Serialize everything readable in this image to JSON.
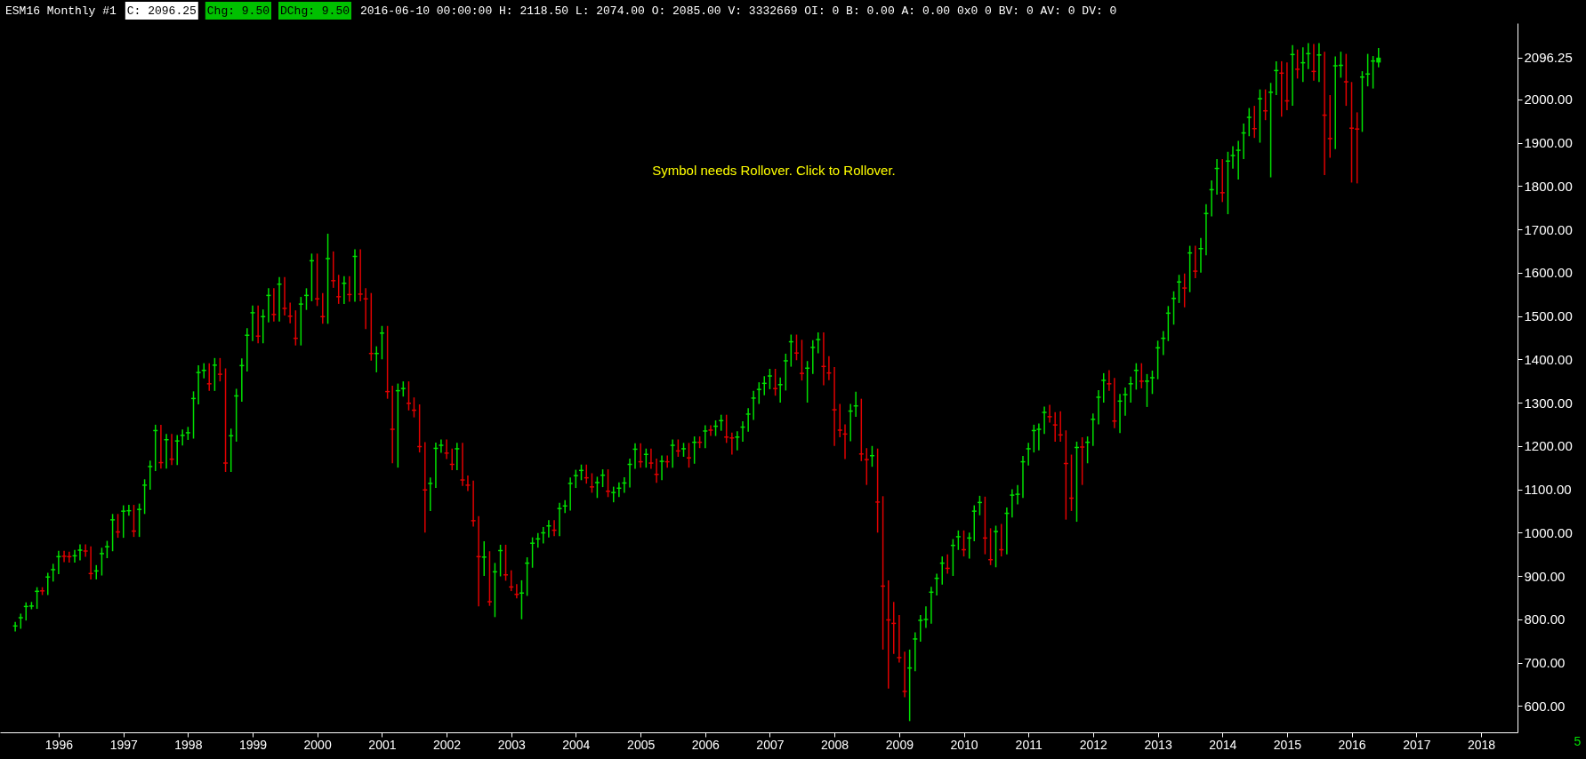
{
  "chart_data": {
    "type": "candlestick",
    "title": "ESM16 Monthly #1",
    "annotations": [
      "C: 2096.25",
      "Chg: 9.50",
      "DChg: 9.50",
      "2016-06-10 00:00:00 H: 2118.50 L: 2074.00 O: 2085.00 V: 3332669 OI: 0 B: 0.00 A: 0.00 0x0 0 BV: 0 AV: 0 DV: 0",
      "Symbol needs Rollover. Click to Rollover.",
      "5"
    ],
    "colors": [
      "#00e000",
      "#00e000",
      "#00e000",
      "#00e000",
      "#00e000",
      "#e00000",
      "#00e000",
      "#00e000",
      "#00e000",
      "#e00000",
      "#e00000",
      "#00e000",
      "#00e000",
      "#e00000",
      "#e00000",
      "#00e000",
      "#00e000",
      "#00e000",
      "#00e000",
      "#e00000",
      "#00e000",
      "#00e000",
      "#e00000",
      "#00e000",
      "#00e000",
      "#00e000",
      "#00e000",
      "#e00000",
      "#00e000",
      "#e00000",
      "#00e000",
      "#00e000",
      "#00e000",
      "#00e000",
      "#00e000",
      "#00e000",
      "#e00000",
      "#00e000",
      "#e00000",
      "#e00000",
      "#00e000",
      "#00e000",
      "#00e000",
      "#00e000",
      "#00e000",
      "#e00000",
      "#00e000",
      "#00e000",
      "#e00000",
      "#00e000",
      "#e00000",
      "#e00000",
      "#e00000",
      "#00e000",
      "#00e000",
      "#00e000",
      "#e00000",
      "#e00000",
      "#00e000",
      "#e00000",
      "#e00000",
      "#00e000",
      "#e00000",
      "#00e000",
      "#e00000",
      "#e00000",
      "#e00000",
      "#00e000",
      "#00e000",
      "#e00000",
      "#e00000",
      "#00e000",
      "#00e000",
      "#e00000",
      "#e00000",
      "#e00000",
      "#e00000",
      "#00e000",
      "#00e000",
      "#00e000",
      "#e00000",
      "#e00000",
      "#00e000",
      "#e00000",
      "#e00000",
      "#e00000",
      "#e00000",
      "#00e000",
      "#e00000",
      "#00e000",
      "#00e000",
      "#e00000",
      "#e00000",
      "#e00000",
      "#00e000",
      "#00e000",
      "#00e000",
      "#00e000",
      "#00e000",
      "#00e000",
      "#e00000",
      "#00e000",
      "#00e000",
      "#00e000",
      "#00e000",
      "#00e000",
      "#e00000",
      "#e00000",
      "#00e000",
      "#00e000",
      "#e00000",
      "#00e000",
      "#00e000",
      "#00e000",
      "#00e000",
      "#00e000",
      "#e00000",
      "#00e000",
      "#e00000",
      "#e00000",
      "#00e000",
      "#e00000",
      "#00e000",
      "#e00000",
      "#00e000",
      "#e00000",
      "#00e000",
      "#e00000",
      "#00e000",
      "#e00000",
      "#00e000",
      "#00e000",
      "#e00000",
      "#e00000",
      "#00e000",
      "#00e000",
      "#00e000",
      "#00e000",
      "#00e000",
      "#00e000",
      "#00e000",
      "#e00000",
      "#00e000",
      "#00e000",
      "#00e000",
      "#e00000",
      "#e00000",
      "#00e000",
      "#00e000",
      "#00e000",
      "#e00000",
      "#e00000",
      "#e00000",
      "#e00000",
      "#e00000",
      "#00e000",
      "#00e000",
      "#e00000",
      "#e00000",
      "#00e000",
      "#e00000",
      "#e00000",
      "#e00000",
      "#e00000",
      "#e00000",
      "#e00000",
      "#00e000",
      "#00e000",
      "#00e000",
      "#00e000",
      "#00e000",
      "#00e000",
      "#00e000",
      "#e00000",
      "#00e000",
      "#00e000",
      "#e00000",
      "#00e000",
      "#00e000",
      "#00e000",
      "#e00000",
      "#e00000",
      "#00e000",
      "#e00000",
      "#00e000",
      "#00e000",
      "#00e000",
      "#00e000",
      "#00e000",
      "#00e000",
      "#00e000",
      "#00e000",
      "#e00000",
      "#e00000",
      "#e00000",
      "#e00000",
      "#e00000",
      "#00e000",
      "#e00000",
      "#00e000",
      "#00e000",
      "#00e000",
      "#00e000",
      "#e00000",
      "#e00000",
      "#00e000",
      "#00e000",
      "#00e000",
      "#00e000",
      "#e00000",
      "#00e000",
      "#00e000",
      "#00e000",
      "#00e000",
      "#00e000",
      "#00e000",
      "#00e000",
      "#e00000",
      "#00e000",
      "#e00000",
      "#00e000",
      "#00e000",
      "#00e000",
      "#00e000",
      "#e00000",
      "#00e000",
      "#00e000",
      "#00e000",
      "#00e000",
      "#00e000",
      "#e00000",
      "#00e000",
      "#e00000",
      "#00e000",
      "#00e000",
      "#e00000",
      "#e00000",
      "#00e000",
      "#e00000",
      "#00e000",
      "#00e000",
      "#e00000",
      "#00e000",
      "#e00000",
      "#e00000",
      "#00e000",
      "#00e000",
      "#e00000",
      "#e00000",
      "#e00000",
      "#00e000",
      "#00e000",
      "#00e000",
      "#00e000"
    ],
    "xlim": [
      "1995-03",
      "2018-07"
    ],
    "xticks": [
      "1996",
      "1997",
      "1998",
      "1999",
      "2000",
      "2001",
      "2002",
      "2003",
      "2004",
      "2005",
      "2006",
      "2007",
      "2008",
      "2009",
      "2010",
      "2011",
      "2012",
      "2013",
      "2014",
      "2015",
      "2016",
      "2017",
      "2018"
    ],
    "ylim": [
      539,
      2176
    ],
    "yticks": [
      {
        "value": 600,
        "label": "600.00"
      },
      {
        "value": 700,
        "label": "700.00"
      },
      {
        "value": 800,
        "label": "800.00"
      },
      {
        "value": 900,
        "label": "900.00"
      },
      {
        "value": 1000,
        "label": "1000.00"
      },
      {
        "value": 1100,
        "label": "1100.00"
      },
      {
        "value": 1200,
        "label": "1200.00"
      },
      {
        "value": 1300,
        "label": "1300.00"
      },
      {
        "value": 1400,
        "label": "1400.00"
      },
      {
        "value": 1500,
        "label": "1500.00"
      },
      {
        "value": 1600,
        "label": "1600.00"
      },
      {
        "value": 1700,
        "label": "1700.00"
      },
      {
        "value": 1800,
        "label": "1800.00"
      },
      {
        "value": 1900,
        "label": "1900.00"
      },
      {
        "value": 2000,
        "label": "2000.00"
      },
      {
        "value": 2096.25,
        "label": "2096.25"
      }
    ],
    "grid": false,
    "x": [
      "1995-05",
      "1995-06",
      "1995-07",
      "1995-08",
      "1995-09",
      "1995-10",
      "1995-11",
      "1995-12",
      "1996-01",
      "1996-02",
      "1996-03",
      "1996-04",
      "1996-05",
      "1996-06",
      "1996-07",
      "1996-08",
      "1996-09",
      "1996-10",
      "1996-11",
      "1996-12",
      "1997-01",
      "1997-02",
      "1997-03",
      "1997-04",
      "1997-05",
      "1997-06",
      "1997-07",
      "1997-08",
      "1997-09",
      "1997-10",
      "1997-11",
      "1997-12",
      "1998-01",
      "1998-02",
      "1998-03",
      "1998-04",
      "1998-05",
      "1998-06",
      "1998-07",
      "1998-08",
      "1998-09",
      "1998-10",
      "1998-11",
      "1998-12",
      "1999-01",
      "1999-02",
      "1999-03",
      "1999-04",
      "1999-05",
      "1999-06",
      "1999-07",
      "1999-08",
      "1999-09",
      "1999-10",
      "1999-11",
      "1999-12",
      "2000-01",
      "2000-02",
      "2000-03",
      "2000-04",
      "2000-05",
      "2000-06",
      "2000-07",
      "2000-08",
      "2000-09",
      "2000-10",
      "2000-11",
      "2000-12",
      "2001-01",
      "2001-02",
      "2001-03",
      "2001-04",
      "2001-05",
      "2001-06",
      "2001-07",
      "2001-08",
      "2001-09",
      "2001-10",
      "2001-11",
      "2001-12",
      "2002-01",
      "2002-02",
      "2002-03",
      "2002-04",
      "2002-05",
      "2002-06",
      "2002-07",
      "2002-08",
      "2002-09",
      "2002-10",
      "2002-11",
      "2002-12",
      "2003-01",
      "2003-02",
      "2003-03",
      "2003-04",
      "2003-05",
      "2003-06",
      "2003-07",
      "2003-08",
      "2003-09",
      "2003-10",
      "2003-11",
      "2003-12",
      "2004-01",
      "2004-02",
      "2004-03",
      "2004-04",
      "2004-05",
      "2004-06",
      "2004-07",
      "2004-08",
      "2004-09",
      "2004-10",
      "2004-11",
      "2004-12",
      "2005-01",
      "2005-02",
      "2005-03",
      "2005-04",
      "2005-05",
      "2005-06",
      "2005-07",
      "2005-08",
      "2005-09",
      "2005-10",
      "2005-11",
      "2005-12",
      "2006-01",
      "2006-02",
      "2006-03",
      "2006-04",
      "2006-05",
      "2006-06",
      "2006-07",
      "2006-08",
      "2006-09",
      "2006-10",
      "2006-11",
      "2006-12",
      "2007-01",
      "2007-02",
      "2007-03",
      "2007-04",
      "2007-05",
      "2007-06",
      "2007-07",
      "2007-08",
      "2007-09",
      "2007-10",
      "2007-11",
      "2007-12",
      "2008-01",
      "2008-02",
      "2008-03",
      "2008-04",
      "2008-05",
      "2008-06",
      "2008-07",
      "2008-08",
      "2008-09",
      "2008-10",
      "2008-11",
      "2008-12",
      "2009-01",
      "2009-02",
      "2009-03",
      "2009-04",
      "2009-05",
      "2009-06",
      "2009-07",
      "2009-08",
      "2009-09",
      "2009-10",
      "2009-11",
      "2009-12",
      "2010-01",
      "2010-02",
      "2010-03",
      "2010-04",
      "2010-05",
      "2010-06",
      "2010-07",
      "2010-08",
      "2010-09",
      "2010-10",
      "2010-11",
      "2010-12",
      "2011-01",
      "2011-02",
      "2011-03",
      "2011-04",
      "2011-05",
      "2011-06",
      "2011-07",
      "2011-08",
      "2011-09",
      "2011-10",
      "2011-11",
      "2011-12",
      "2012-01",
      "2012-02",
      "2012-03",
      "2012-04",
      "2012-05",
      "2012-06",
      "2012-07",
      "2012-08",
      "2012-09",
      "2012-10",
      "2012-11",
      "2012-12",
      "2013-01",
      "2013-02",
      "2013-03",
      "2013-04",
      "2013-05",
      "2013-06",
      "2013-07",
      "2013-08",
      "2013-09",
      "2013-10",
      "2013-11",
      "2013-12",
      "2014-01",
      "2014-02",
      "2014-03",
      "2014-04",
      "2014-05",
      "2014-06",
      "2014-07",
      "2014-08",
      "2014-09",
      "2014-10",
      "2014-11",
      "2014-12",
      "2015-01",
      "2015-02",
      "2015-03",
      "2015-04",
      "2015-05",
      "2015-06",
      "2015-07",
      "2015-08",
      "2015-09",
      "2015-10",
      "2015-11",
      "2015-12",
      "2016-01",
      "2016-02",
      "2016-03",
      "2016-04",
      "2016-05",
      "2016-06"
    ],
    "ohlc": [
      [
        783,
        794,
        772,
        786
      ],
      [
        802,
        813,
        778,
        805
      ],
      [
        828,
        839,
        797,
        831
      ],
      [
        829,
        840,
        823,
        832
      ],
      [
        863,
        874,
        824,
        866
      ],
      [
        867,
        874,
        856,
        864
      ],
      [
        896,
        907,
        856,
        899
      ],
      [
        913,
        928,
        887,
        916
      ],
      [
        943,
        958,
        904,
        946
      ],
      [
        947,
        958,
        932,
        944
      ],
      [
        946,
        956,
        931,
        943
      ],
      [
        945,
        960,
        931,
        948
      ],
      [
        958,
        973,
        936,
        961
      ],
      [
        959,
        973,
        944,
        956
      ],
      [
        907,
        968,
        892,
        904
      ],
      [
        910,
        925,
        892,
        913
      ],
      [
        950,
        965,
        901,
        953
      ],
      [
        966,
        981,
        941,
        969
      ],
      [
        1028,
        1043,
        957,
        1031
      ],
      [
        1003,
        1043,
        988,
        1000
      ],
      [
        1048,
        1063,
        988,
        1051
      ],
      [
        1049,
        1064,
        1039,
        1052
      ],
      [
        1005,
        1064,
        990,
        1002
      ],
      [
        1052,
        1067,
        990,
        1055
      ],
      [
        1108,
        1123,
        1043,
        1111
      ],
      [
        1151,
        1166,
        1099,
        1154
      ],
      [
        1234,
        1249,
        1142,
        1237
      ],
      [
        1163,
        1249,
        1148,
        1160
      ],
      [
        1213,
        1228,
        1148,
        1216
      ],
      [
        1171,
        1228,
        1156,
        1168
      ],
      [
        1210,
        1225,
        1156,
        1213
      ],
      [
        1223,
        1238,
        1201,
        1226
      ],
      [
        1229,
        1244,
        1214,
        1232
      ],
      [
        1308,
        1326,
        1217,
        1311
      ],
      [
        1368,
        1386,
        1296,
        1371
      ],
      [
        1373,
        1391,
        1356,
        1376
      ],
      [
        1345,
        1391,
        1327,
        1342
      ],
      [
        1385,
        1403,
        1327,
        1388
      ],
      [
        1367,
        1403,
        1349,
        1364
      ],
      [
        1162,
        1379,
        1140,
        1159
      ],
      [
        1222,
        1240,
        1140,
        1225
      ],
      [
        1314,
        1332,
        1210,
        1317
      ],
      [
        1384,
        1402,
        1302,
        1387
      ],
      [
        1454,
        1472,
        1372,
        1457
      ],
      [
        1506,
        1524,
        1442,
        1509
      ],
      [
        1455,
        1524,
        1437,
        1452
      ],
      [
        1497,
        1515,
        1437,
        1500
      ],
      [
        1546,
        1564,
        1485,
        1549
      ],
      [
        1505,
        1564,
        1487,
        1502
      ],
      [
        1572,
        1590,
        1487,
        1575
      ],
      [
        1519,
        1590,
        1501,
        1516
      ],
      [
        1501,
        1531,
        1483,
        1498
      ],
      [
        1450,
        1513,
        1432,
        1447
      ],
      [
        1526,
        1544,
        1432,
        1529
      ],
      [
        1546,
        1564,
        1514,
        1549
      ],
      [
        1626,
        1644,
        1534,
        1629
      ],
      [
        1541,
        1644,
        1523,
        1538
      ],
      [
        1500,
        1553,
        1482,
        1497
      ],
      [
        1631,
        1690,
        1482,
        1634
      ],
      [
        1583,
        1649,
        1565,
        1580
      ],
      [
        1546,
        1595,
        1528,
        1543
      ],
      [
        1574,
        1592,
        1528,
        1577
      ],
      [
        1551,
        1592,
        1533,
        1548
      ],
      [
        1636,
        1654,
        1533,
        1639
      ],
      [
        1552,
        1654,
        1534,
        1549
      ],
      [
        1541,
        1564,
        1470,
        1538
      ],
      [
        1415,
        1553,
        1397,
        1412
      ],
      [
        1412,
        1430,
        1370,
        1415
      ],
      [
        1459,
        1477,
        1400,
        1462
      ],
      [
        1327,
        1477,
        1309,
        1324
      ],
      [
        1240,
        1339,
        1160,
        1237
      ],
      [
        1326,
        1344,
        1150,
        1329
      ],
      [
        1331,
        1349,
        1314,
        1334
      ],
      [
        1300,
        1349,
        1282,
        1297
      ],
      [
        1284,
        1312,
        1266,
        1281
      ],
      [
        1200,
        1296,
        1185,
        1197
      ],
      [
        1100,
        1209,
        1000,
        1097
      ],
      [
        1112,
        1127,
        1050,
        1115
      ],
      [
        1193,
        1208,
        1103,
        1196
      ],
      [
        1200,
        1215,
        1184,
        1203
      ],
      [
        1185,
        1215,
        1170,
        1182
      ],
      [
        1159,
        1194,
        1144,
        1156
      ],
      [
        1192,
        1207,
        1144,
        1195
      ],
      [
        1123,
        1207,
        1108,
        1120
      ],
      [
        1111,
        1132,
        1096,
        1108
      ],
      [
        1029,
        1120,
        1014,
        1026
      ],
      [
        946,
        1038,
        830,
        943
      ],
      [
        942,
        980,
        900,
        945
      ],
      [
        842,
        957,
        831,
        839
      ],
      [
        908,
        930,
        805,
        911
      ],
      [
        957,
        972,
        899,
        960
      ],
      [
        904,
        972,
        889,
        901
      ],
      [
        876,
        913,
        865,
        873
      ],
      [
        859,
        881,
        848,
        856
      ],
      [
        859,
        890,
        800,
        862
      ],
      [
        928,
        943,
        854,
        931
      ],
      [
        974,
        989,
        919,
        977
      ],
      [
        984,
        999,
        965,
        987
      ],
      [
        998,
        1013,
        975,
        1001
      ],
      [
        1014,
        1029,
        989,
        1017
      ],
      [
        1007,
        1029,
        992,
        1004
      ],
      [
        1054,
        1069,
        992,
        1057
      ],
      [
        1060,
        1075,
        1045,
        1063
      ],
      [
        1112,
        1127,
        1051,
        1115
      ],
      [
        1130,
        1145,
        1103,
        1133
      ],
      [
        1142,
        1157,
        1121,
        1145
      ],
      [
        1128,
        1157,
        1113,
        1125
      ],
      [
        1107,
        1137,
        1092,
        1104
      ],
      [
        1114,
        1129,
        1080,
        1117
      ],
      [
        1131,
        1146,
        1105,
        1134
      ],
      [
        1097,
        1146,
        1082,
        1094
      ],
      [
        1091,
        1106,
        1070,
        1094
      ],
      [
        1101,
        1116,
        1082,
        1104
      ],
      [
        1113,
        1128,
        1092,
        1116
      ],
      [
        1156,
        1171,
        1104,
        1159
      ],
      [
        1191,
        1206,
        1147,
        1194
      ],
      [
        1165,
        1206,
        1150,
        1162
      ],
      [
        1179,
        1194,
        1150,
        1182
      ],
      [
        1162,
        1194,
        1147,
        1159
      ],
      [
        1136,
        1171,
        1115,
        1133
      ],
      [
        1163,
        1178,
        1121,
        1166
      ],
      [
        1165,
        1178,
        1150,
        1162
      ],
      [
        1200,
        1215,
        1150,
        1203
      ],
      [
        1190,
        1215,
        1175,
        1187
      ],
      [
        1192,
        1207,
        1175,
        1195
      ],
      [
        1174,
        1207,
        1150,
        1171
      ],
      [
        1207,
        1222,
        1159,
        1210
      ],
      [
        1210,
        1222,
        1195,
        1207
      ],
      [
        1233,
        1248,
        1195,
        1236
      ],
      [
        1238,
        1248,
        1223,
        1235
      ],
      [
        1244,
        1259,
        1223,
        1247
      ],
      [
        1257,
        1272,
        1235,
        1260
      ],
      [
        1222,
        1272,
        1207,
        1219
      ],
      [
        1220,
        1231,
        1180,
        1217
      ],
      [
        1219,
        1234,
        1190,
        1222
      ],
      [
        1242,
        1257,
        1210,
        1245
      ],
      [
        1272,
        1287,
        1233,
        1275
      ],
      [
        1309,
        1327,
        1260,
        1312
      ],
      [
        1329,
        1347,
        1297,
        1332
      ],
      [
        1343,
        1361,
        1317,
        1346
      ],
      [
        1360,
        1378,
        1331,
        1363
      ],
      [
        1334,
        1378,
        1316,
        1331
      ],
      [
        1340,
        1358,
        1300,
        1343
      ],
      [
        1395,
        1413,
        1328,
        1398
      ],
      [
        1439,
        1457,
        1383,
        1442
      ],
      [
        1416,
        1457,
        1398,
        1413
      ],
      [
        1369,
        1445,
        1351,
        1366
      ],
      [
        1378,
        1396,
        1300,
        1381
      ],
      [
        1426,
        1444,
        1366,
        1429
      ],
      [
        1444,
        1462,
        1414,
        1447
      ],
      [
        1385,
        1462,
        1340,
        1382
      ],
      [
        1370,
        1407,
        1352,
        1367
      ],
      [
        1285,
        1382,
        1200,
        1282
      ],
      [
        1238,
        1297,
        1220,
        1235
      ],
      [
        1229,
        1250,
        1170,
        1226
      ],
      [
        1279,
        1297,
        1211,
        1282
      ],
      [
        1291,
        1325,
        1267,
        1294
      ],
      [
        1183,
        1309,
        1165,
        1180
      ],
      [
        1170,
        1195,
        1110,
        1167
      ],
      [
        1176,
        1200,
        1152,
        1179
      ],
      [
        1072,
        1194,
        1000,
        1069
      ],
      [
        878,
        1084,
        730,
        875
      ],
      [
        800,
        890,
        640,
        797
      ],
      [
        792,
        840,
        720,
        789
      ],
      [
        713,
        810,
        700,
        710
      ],
      [
        635,
        725,
        620,
        632
      ],
      [
        686,
        730,
        565,
        689
      ],
      [
        753,
        770,
        680,
        756
      ],
      [
        796,
        810,
        748,
        799
      ],
      [
        798,
        830,
        780,
        801
      ],
      [
        861,
        875,
        790,
        864
      ],
      [
        893,
        905,
        855,
        896
      ],
      [
        928,
        945,
        880,
        931
      ],
      [
        919,
        950,
        905,
        916
      ],
      [
        969,
        985,
        900,
        972
      ],
      [
        989,
        1005,
        960,
        992
      ],
      [
        962,
        1005,
        945,
        959
      ],
      [
        986,
        1000,
        940,
        989
      ],
      [
        1048,
        1063,
        980,
        1051
      ],
      [
        1068,
        1085,
        1040,
        1071
      ],
      [
        989,
        1083,
        950,
        986
      ],
      [
        939,
        1010,
        925,
        936
      ],
      [
        1001,
        1016,
        920,
        1004
      ],
      [
        962,
        1020,
        945,
        959
      ],
      [
        1043,
        1058,
        950,
        1046
      ],
      [
        1085,
        1100,
        1035,
        1088
      ],
      [
        1087,
        1110,
        1065,
        1090
      ],
      [
        1162,
        1177,
        1080,
        1165
      ],
      [
        1192,
        1207,
        1155,
        1195
      ],
      [
        1234,
        1249,
        1185,
        1237
      ],
      [
        1237,
        1252,
        1190,
        1240
      ],
      [
        1276,
        1291,
        1228,
        1279
      ],
      [
        1269,
        1295,
        1254,
        1266
      ],
      [
        1250,
        1278,
        1210,
        1247
      ],
      [
        1227,
        1280,
        1210,
        1224
      ],
      [
        1161,
        1236,
        1030,
        1158
      ],
      [
        1081,
        1180,
        1050,
        1078
      ],
      [
        1195,
        1210,
        1025,
        1198
      ],
      [
        1199,
        1220,
        1110,
        1196
      ],
      [
        1207,
        1222,
        1160,
        1210
      ],
      [
        1260,
        1275,
        1200,
        1263
      ],
      [
        1311,
        1329,
        1250,
        1314
      ],
      [
        1350,
        1368,
        1300,
        1353
      ],
      [
        1345,
        1375,
        1327,
        1342
      ],
      [
        1259,
        1357,
        1241,
        1256
      ],
      [
        1302,
        1320,
        1230,
        1305
      ],
      [
        1317,
        1335,
        1270,
        1320
      ],
      [
        1342,
        1360,
        1300,
        1345
      ],
      [
        1373,
        1391,
        1330,
        1376
      ],
      [
        1351,
        1391,
        1333,
        1348
      ],
      [
        1348,
        1366,
        1290,
        1351
      ],
      [
        1356,
        1374,
        1320,
        1359
      ],
      [
        1425,
        1443,
        1354,
        1428
      ],
      [
        1447,
        1465,
        1410,
        1450
      ],
      [
        1505,
        1523,
        1442,
        1508
      ],
      [
        1539,
        1557,
        1480,
        1542
      ],
      [
        1577,
        1595,
        1530,
        1580
      ],
      [
        1566,
        1598,
        1520,
        1563
      ],
      [
        1644,
        1662,
        1555,
        1647
      ],
      [
        1605,
        1662,
        1587,
        1602
      ],
      [
        1654,
        1680,
        1600,
        1657
      ],
      [
        1735,
        1758,
        1640,
        1738
      ],
      [
        1790,
        1813,
        1730,
        1793
      ],
      [
        1839,
        1862,
        1780,
        1842
      ],
      [
        1786,
        1862,
        1763,
        1783
      ],
      [
        1856,
        1879,
        1735,
        1859
      ],
      [
        1869,
        1892,
        1840,
        1872
      ],
      [
        1881,
        1904,
        1815,
        1884
      ],
      [
        1921,
        1944,
        1862,
        1924
      ],
      [
        1957,
        1980,
        1915,
        1960
      ],
      [
        1934,
        1985,
        1911,
        1931
      ],
      [
        2000,
        2023,
        1900,
        2003
      ],
      [
        1975,
        2023,
        1952,
        1972
      ],
      [
        2015,
        2038,
        1820,
        2018
      ],
      [
        2065,
        2088,
        2010,
        2068
      ],
      [
        2062,
        2088,
        1960,
        2059
      ],
      [
        1998,
        2085,
        1975,
        1995
      ],
      [
        2102,
        2125,
        1985,
        2105
      ],
      [
        2071,
        2115,
        2048,
        2068
      ],
      [
        2083,
        2120,
        2040,
        2086
      ],
      [
        2104,
        2130,
        2070,
        2107
      ],
      [
        2066,
        2128,
        2043,
        2063
      ],
      [
        2101,
        2130,
        2040,
        2104
      ],
      [
        1965,
        2110,
        1825,
        1962
      ],
      [
        1911,
        2010,
        1865,
        1908
      ],
      [
        2076,
        2099,
        1885,
        2079
      ],
      [
        2077,
        2110,
        2050,
        2080
      ],
      [
        2042,
        2105,
        1985,
        2039
      ],
      [
        1935,
        2040,
        1808,
        1932
      ],
      [
        1933,
        1970,
        1806,
        1930
      ],
      [
        2050,
        2065,
        1925,
        2053
      ],
      [
        2057,
        2105,
        2030,
        2060
      ],
      [
        2087,
        2100,
        2025,
        2090
      ],
      [
        2085,
        2118.5,
        2074,
        2096.25
      ]
    ]
  }
}
